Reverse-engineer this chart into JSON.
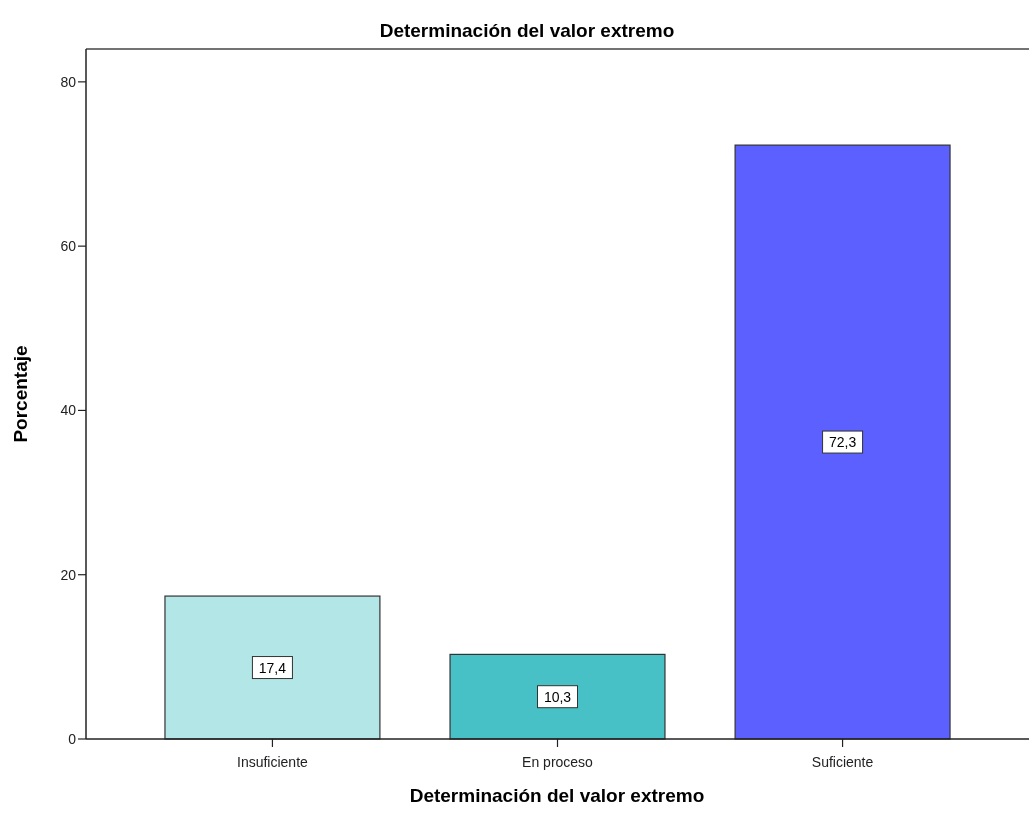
{
  "chart_data": {
    "type": "bar",
    "title": "Determinación del valor extremo",
    "xlabel": "Determinación del valor extremo",
    "ylabel": "Porcentaje",
    "categories": [
      "Insuficiente",
      "En proceso",
      "Suficiente"
    ],
    "values": [
      17.4,
      10.3,
      72.3
    ],
    "colors": [
      "#b3e6e6",
      "#48c1c6",
      "#5c60ff"
    ],
    "value_labels": [
      "17,4",
      "10,3",
      "72,3"
    ],
    "ylim": [
      0,
      84
    ],
    "yticks": [
      0,
      20,
      40,
      60,
      80
    ]
  }
}
